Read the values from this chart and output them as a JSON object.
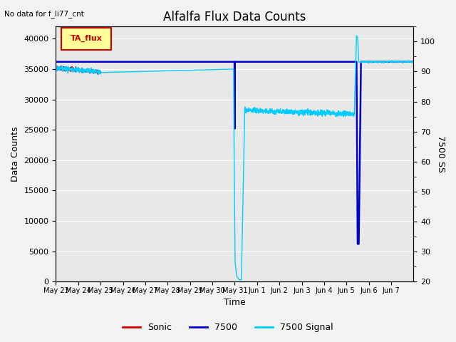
{
  "title": "Alfalfa Flux Data Counts",
  "top_left_note": "No data for f_li77_cnt",
  "ylabel_left": "Data Counts",
  "ylabel_right": "7500 SS",
  "xlabel": "Time",
  "legend_box_label": "TA_flux",
  "legend_entries": [
    "Sonic",
    "7500",
    "7500 Signal"
  ],
  "legend_colors": [
    "#ff0000",
    "#0000cc",
    "#00ddff"
  ],
  "xlim_days": [
    0,
    16
  ],
  "ylim_left": [
    0,
    42000
  ],
  "ylim_right": [
    20,
    105
  ],
  "xtick_labels": [
    "May 23",
    "May 24",
    "May 25",
    "May 26",
    "May 27",
    "May 28",
    "May 29",
    "May 30",
    "May 31",
    "Jun 1",
    "Jun 2",
    "Jun 3",
    "Jun 4",
    "Jun 5",
    "Jun 6",
    "Jun 7"
  ],
  "yticks_left": [
    0,
    5000,
    10000,
    15000,
    20000,
    25000,
    30000,
    35000,
    40000
  ],
  "yticks_right": [
    20,
    30,
    40,
    50,
    60,
    70,
    80,
    90,
    100
  ],
  "background_color": "#e8e8e8",
  "fig_background": "#f2f2f2",
  "title_fontsize": 12,
  "label_fontsize": 9,
  "tick_fontsize": 8
}
